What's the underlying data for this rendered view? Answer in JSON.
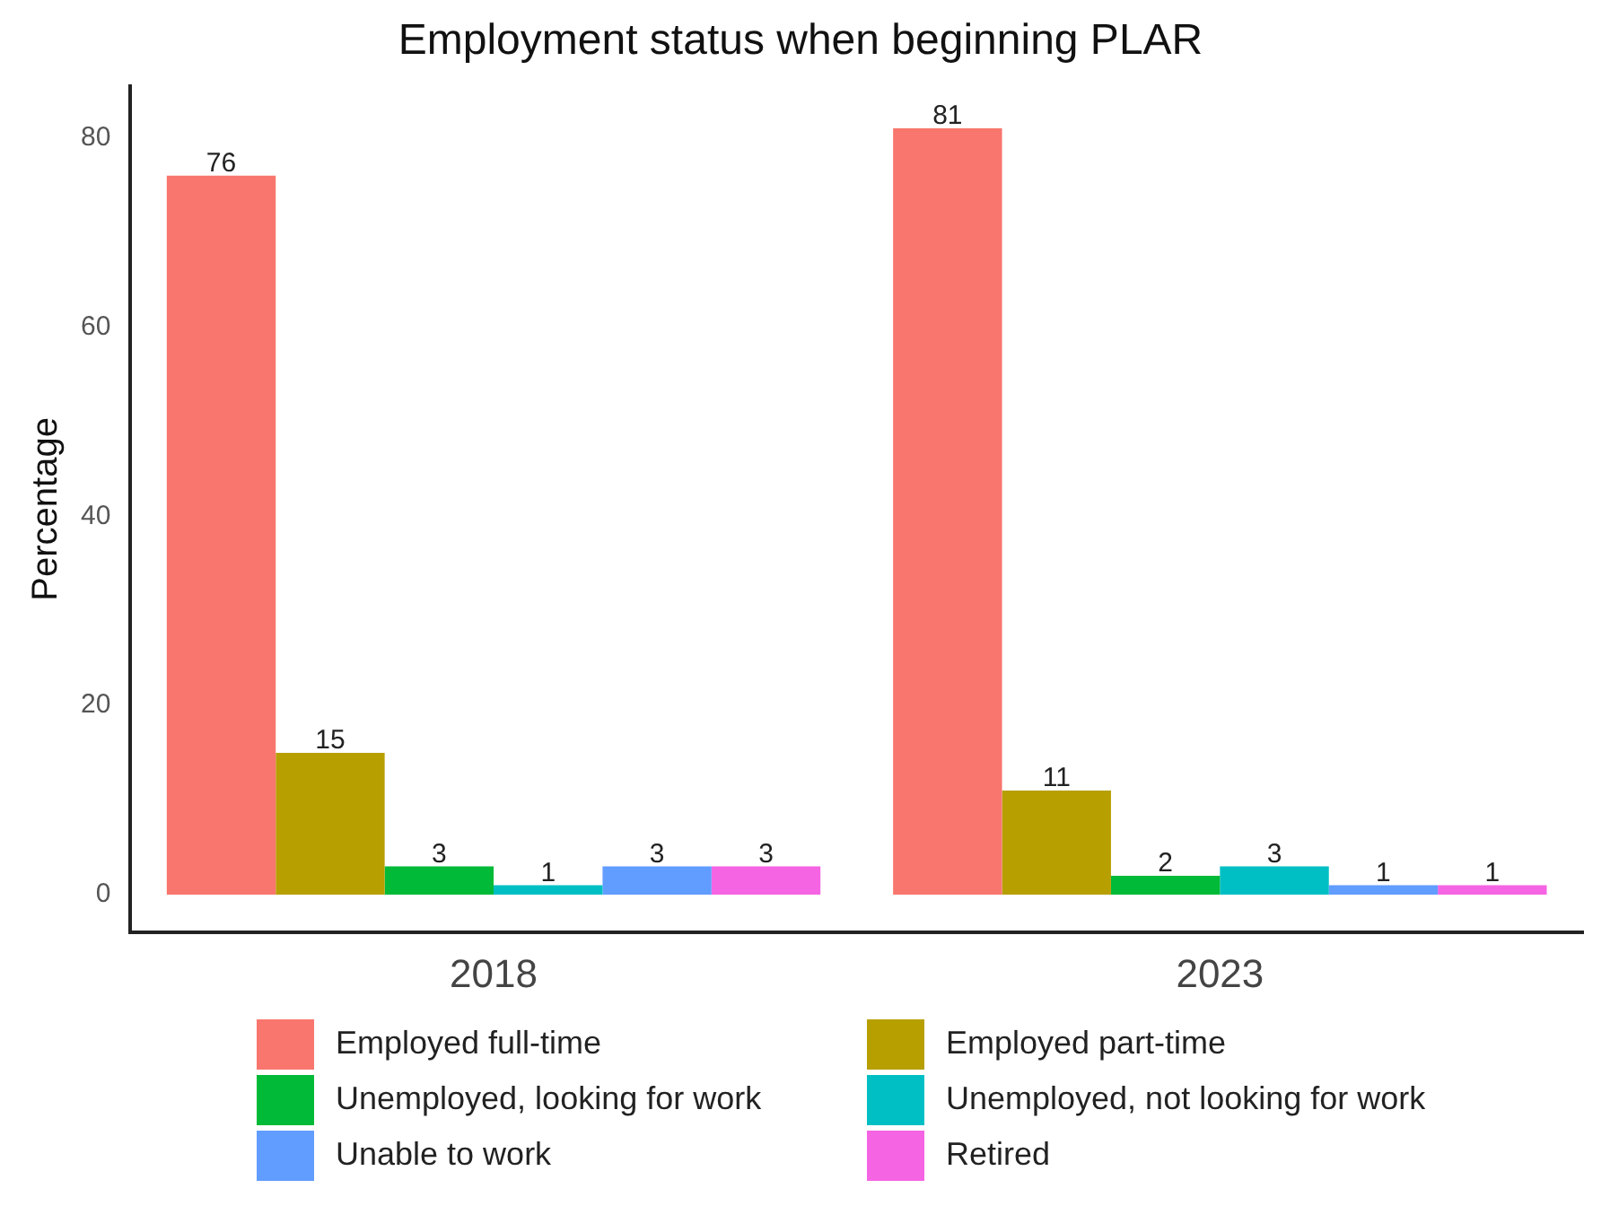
{
  "chart_data": {
    "type": "bar",
    "title": "Employment status when beginning PLAR",
    "ylabel": "Percentage",
    "categories": [
      "2018",
      "2023"
    ],
    "series": [
      {
        "name": "Employed full-time",
        "color": "#f8766d",
        "values": [
          76,
          81
        ]
      },
      {
        "name": "Employed part-time",
        "color": "#b79f00",
        "values": [
          15,
          11
        ]
      },
      {
        "name": "Unemployed, looking for work",
        "color": "#00ba38",
        "values": [
          3,
          2
        ]
      },
      {
        "name": "Unemployed, not looking for work",
        "color": "#00bfc4",
        "values": [
          1,
          3
        ]
      },
      {
        "name": "Unable to work",
        "color": "#619cff",
        "values": [
          3,
          1
        ]
      },
      {
        "name": "Retired",
        "color": "#f564e3",
        "values": [
          3,
          1
        ]
      }
    ],
    "ylim": [
      -4,
      85.5
    ],
    "yticks": [
      0,
      20,
      40,
      60,
      80
    ],
    "grid": false,
    "legend": "bottom",
    "data_labels": true
  }
}
